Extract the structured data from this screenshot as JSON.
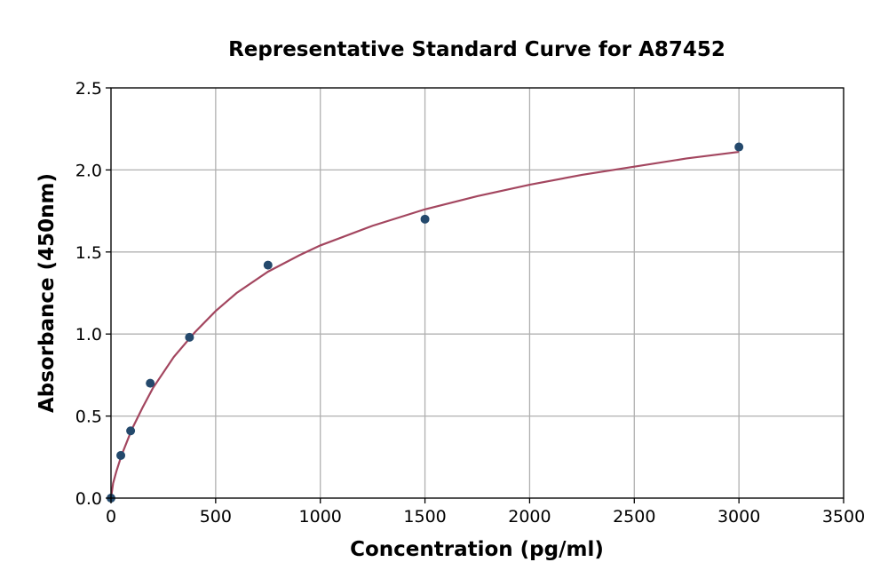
{
  "chart_data": {
    "type": "scatter",
    "title": "Representative Standard Curve for A87452",
    "xlabel": "Concentration (pg/ml)",
    "ylabel": "Absorbance (450nm)",
    "xlim": [
      0,
      3500
    ],
    "ylim": [
      0,
      2.5
    ],
    "xticks": [
      0,
      500,
      1000,
      1500,
      2000,
      2500,
      3000,
      3500
    ],
    "yticks": [
      0.0,
      0.5,
      1.0,
      1.5,
      2.0,
      2.5
    ],
    "xtick_labels": [
      "0",
      "500",
      "1000",
      "1500",
      "2000",
      "2500",
      "3000",
      "3500"
    ],
    "ytick_labels": [
      "0.0",
      "0.5",
      "1.0",
      "1.5",
      "2.0",
      "2.5"
    ],
    "grid": true,
    "series": [
      {
        "kind": "points",
        "x": [
          0,
          46.88,
          93.75,
          187.5,
          375,
          750,
          1500,
          3000
        ],
        "y": [
          0.0,
          0.26,
          0.41,
          0.7,
          0.98,
          1.42,
          1.7,
          2.14
        ],
        "color": "#24496c"
      },
      {
        "kind": "fit-curve",
        "x": [
          0,
          10,
          25,
          50,
          100,
          150,
          200,
          300,
          400,
          500,
          600,
          750,
          900,
          1000,
          1250,
          1500,
          1750,
          2000,
          2250,
          2500,
          2750,
          3000
        ],
        "y": [
          0.0,
          0.09,
          0.16,
          0.26,
          0.42,
          0.55,
          0.67,
          0.86,
          1.01,
          1.14,
          1.25,
          1.38,
          1.48,
          1.54,
          1.66,
          1.76,
          1.84,
          1.91,
          1.97,
          2.02,
          2.07,
          2.11
        ],
        "color": "#a3465f"
      }
    ]
  }
}
